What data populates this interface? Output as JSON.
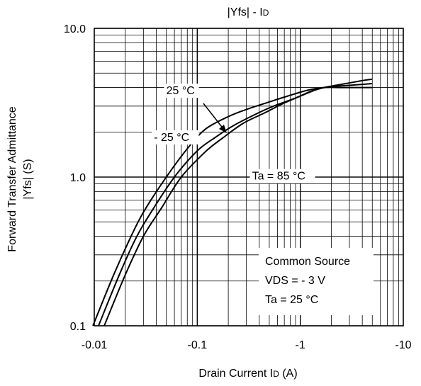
{
  "chart_data": {
    "type": "line",
    "title": {
      "main": "|Yfs| - I",
      "sub": "D"
    },
    "xlabel": {
      "main": "Drain Current I",
      "sub": "D",
      "tail": " (A)"
    },
    "ylabel": {
      "line1": "Forward Transfer Admittance",
      "line2": "|Yfs| (S)"
    },
    "x_scale": "log",
    "y_scale": "log",
    "x_note": "axis is |ID| magnitude, tick labels negative",
    "xlim": [
      0.01,
      10
    ],
    "ylim": [
      0.1,
      10
    ],
    "x_ticks": [
      {
        "value": 0.01,
        "label": "-0.01"
      },
      {
        "value": 0.1,
        "label": "-0.1"
      },
      {
        "value": 1,
        "label": "-1"
      },
      {
        "value": 10,
        "label": "-10"
      }
    ],
    "y_ticks": [
      {
        "value": 0.1,
        "label": "0.1"
      },
      {
        "value": 1,
        "label": "1.0"
      },
      {
        "value": 10,
        "label": "10.0"
      }
    ],
    "grid": true,
    "series": [
      {
        "name": "- 25 °C",
        "x": [
          0.0097,
          0.015,
          0.022,
          0.03,
          0.05,
          0.08,
          0.12,
          0.2,
          0.3,
          0.5,
          0.8,
          1.2,
          1.7,
          2.5,
          4,
          5
        ],
        "y": [
          0.1,
          0.21,
          0.38,
          0.58,
          1.0,
          1.55,
          2.1,
          2.55,
          2.85,
          3.2,
          3.55,
          3.85,
          4.0,
          4.0,
          4.0,
          4.0
        ]
      },
      {
        "name": "25 °C",
        "x": [
          0.011,
          0.017,
          0.025,
          0.035,
          0.06,
          0.1,
          0.15,
          0.22,
          0.35,
          0.55,
          0.9,
          1.3,
          1.7,
          2.5,
          4,
          5
        ],
        "y": [
          0.1,
          0.21,
          0.38,
          0.57,
          1.0,
          1.5,
          1.85,
          2.2,
          2.6,
          3.0,
          3.4,
          3.8,
          4.0,
          4.1,
          4.2,
          4.25
        ]
      },
      {
        "name": "Ta = 85 °C",
        "x": [
          0.0125,
          0.02,
          0.03,
          0.045,
          0.07,
          0.12,
          0.18,
          0.28,
          0.45,
          0.7,
          1.0,
          1.4,
          1.7,
          2.5,
          4,
          5
        ],
        "y": [
          0.1,
          0.22,
          0.4,
          0.62,
          1.0,
          1.48,
          1.85,
          2.3,
          2.7,
          3.15,
          3.5,
          3.85,
          4.0,
          4.2,
          4.45,
          4.55
        ]
      }
    ],
    "annotations": [
      {
        "text": "25 °C",
        "x": 0.05,
        "y": 3.6
      },
      {
        "text": "- 25 °C",
        "x": 0.038,
        "y": 1.75
      },
      {
        "text": "Ta = 85 °C",
        "x": 0.34,
        "y": 0.96
      }
    ],
    "legend_box": {
      "lines": [
        "Common Source",
        "VDS = - 3 V",
        "Ta = 25 °C"
      ],
      "position": "bottom-right"
    }
  }
}
